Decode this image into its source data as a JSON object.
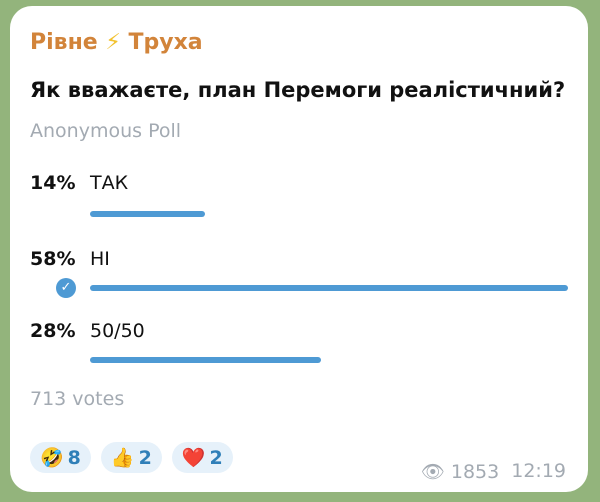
{
  "channel": {
    "name_left": "Рівне",
    "name_icon": "⚡",
    "name_right": "Труха"
  },
  "poll": {
    "question": "Як вважаєте, план Перемоги реалістичний?",
    "type": "Anonymous Poll",
    "options": [
      {
        "percent_label": "14%",
        "label": "ТАК",
        "percent": 14,
        "selected": false
      },
      {
        "percent_label": "58%",
        "label": "НІ",
        "percent": 58,
        "selected": true
      },
      {
        "percent_label": "28%",
        "label": "50/50",
        "percent": 28,
        "selected": false
      }
    ],
    "votes": "713 votes"
  },
  "reactions": [
    {
      "emoji": "🤣",
      "count": "8"
    },
    {
      "emoji": "👍",
      "count": "2"
    },
    {
      "emoji": "❤️",
      "count": "2"
    }
  ],
  "meta": {
    "views": "1853",
    "time": "12:19"
  },
  "colors": {
    "bar": "#4e9ad4",
    "channel": "#d2843a",
    "background": "#93b47c"
  }
}
